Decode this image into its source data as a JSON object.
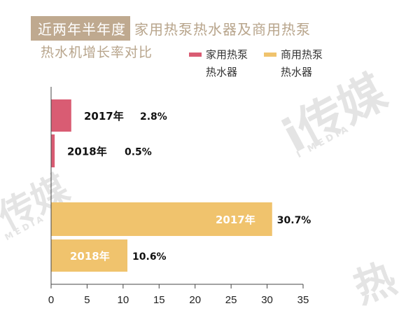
{
  "title": {
    "highlight": "近两年半年度",
    "rest": "家用热泵热水器及商用热泵",
    "line2": "热水机增长率对比"
  },
  "watermark": {
    "brand_large": "i传媒",
    "brand_small": "I MEDIA",
    "brand_left": "传媒",
    "brand_left_small": "MEDIA",
    "corner_glyph": "热"
  },
  "chart_data": {
    "type": "bar",
    "orientation": "horizontal",
    "x_ticks": [
      "0",
      "5",
      "10",
      "15",
      "20",
      "25",
      "30",
      "35"
    ],
    "xlim": [
      0,
      35
    ],
    "series": [
      {
        "name": "家用热泵热水器",
        "color": "#d95c73",
        "points": [
          {
            "category": "2017年",
            "value": 2.8,
            "label": "2.8%"
          },
          {
            "category": "2018年",
            "value": 0.5,
            "label": "0.5%"
          }
        ]
      },
      {
        "name": "商用热泵热水器",
        "color": "#f0c36d",
        "points": [
          {
            "category": "2017年",
            "value": 30.7,
            "label": "30.7%"
          },
          {
            "category": "2018年",
            "value": 10.6,
            "label": "10.6%"
          }
        ]
      }
    ],
    "legend": [
      {
        "label_line1": "家用热泵",
        "label_line2": "热水器",
        "color": "#d95c73"
      },
      {
        "label_line1": "商用热泵",
        "label_line2": "热水器",
        "color": "#f0c36d"
      }
    ]
  }
}
